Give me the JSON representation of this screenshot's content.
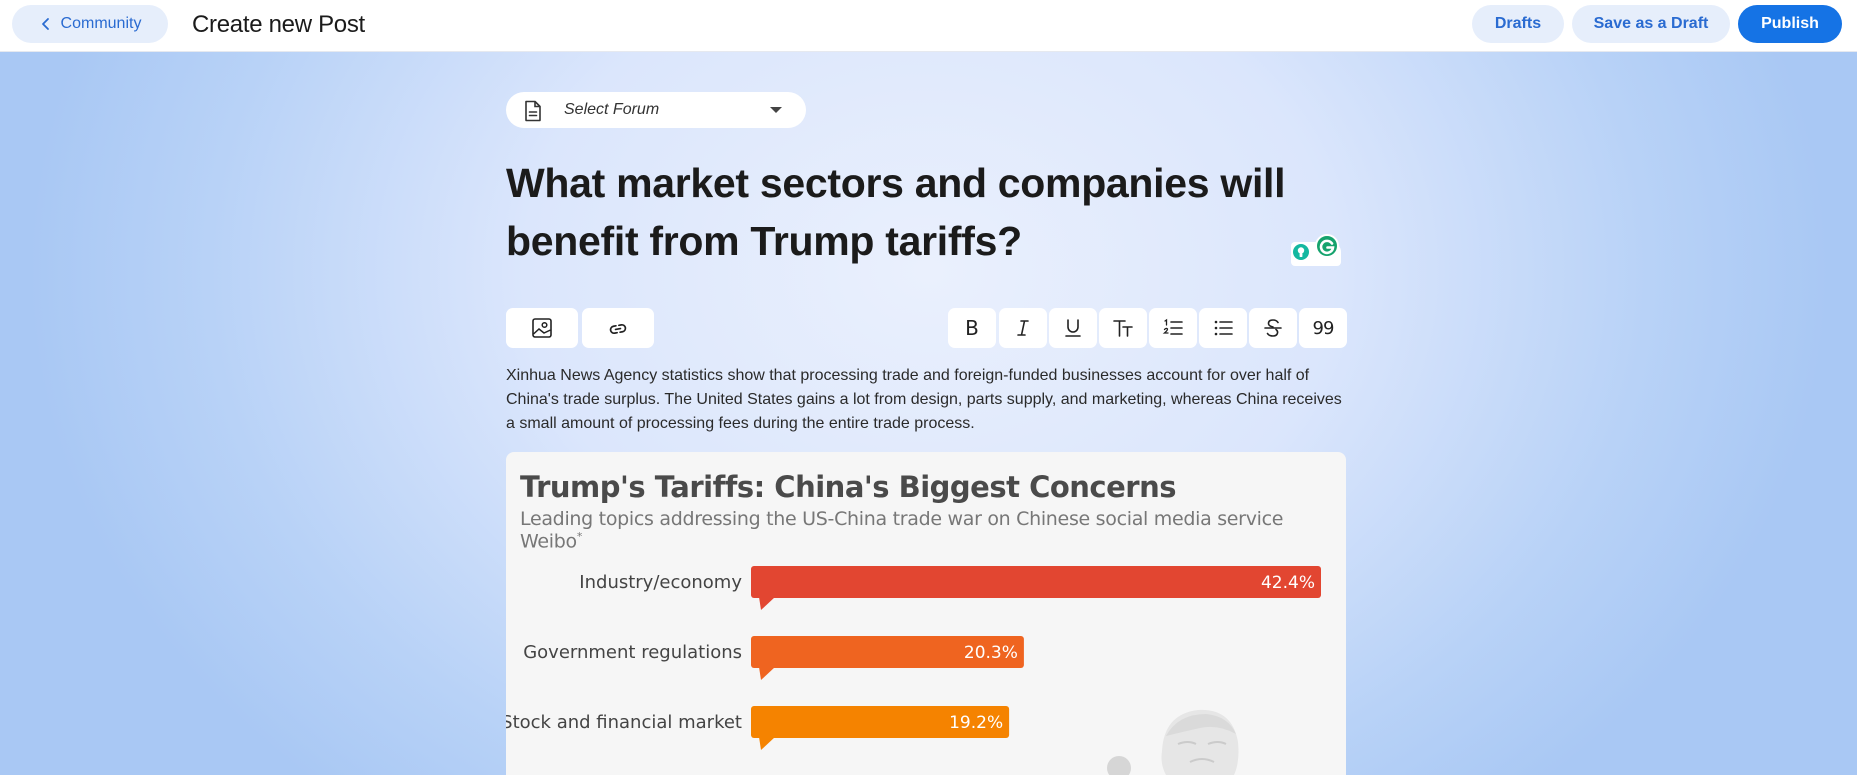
{
  "header": {
    "back_label": "Community",
    "page_title": "Create new Post",
    "drafts_label": "Drafts",
    "save_draft_label": "Save as a Draft",
    "publish_label": "Publish"
  },
  "forum_select": {
    "placeholder": "Select Forum"
  },
  "post": {
    "title_line1": "What market sectors and companies will",
    "title_line2": "benefit from Trump tariffs?",
    "body": "Xinhua News Agency statistics show that processing trade and foreign-funded businesses account for over half of China's trade surplus. The United States gains a lot from design, parts supply, and marketing, whereas China receives a small amount of processing fees during the entire trade process."
  },
  "toolbar": {
    "bold_glyph": "B",
    "quote_glyph": "99"
  },
  "colors": {
    "accent": "#1573e5",
    "bar1": "#e24631",
    "bar2": "#ef6420",
    "bar3": "#f58300"
  },
  "chart_data": {
    "type": "bar",
    "title": "Trump's Tariffs: China's Biggest Concerns",
    "subtitle": "Leading topics addressing the US-China trade war on Chinese social media service Weibo",
    "subtitle_mark": "*",
    "categories": [
      "Industry/economy",
      "Government regulations",
      "Stock and financial market"
    ],
    "values": [
      42.4,
      20.3,
      19.2
    ],
    "value_labels": [
      "42.4%",
      "20.3%",
      "19.2%"
    ],
    "orientation": "horizontal",
    "xlim": [
      0,
      42.4
    ]
  }
}
